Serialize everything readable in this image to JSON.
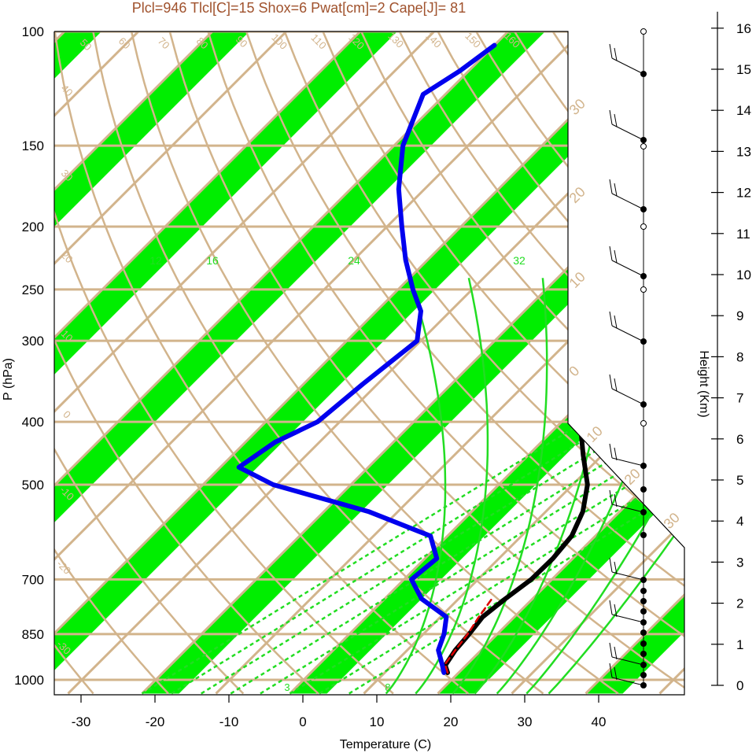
{
  "header": {
    "text": "Plcl=946 Tlcl[C]=15 Shox=6 Pwat[cm]=2 Cape[J]= 81"
  },
  "chart_data": {
    "type": "skew-t log-p sounding",
    "title": "Plcl=946 Tlcl[C]=15 Shox=6 Pwat[cm]=2 Cape[J]= 81",
    "xlabel": "Temperature (C)",
    "ylabel": "P (hPa)",
    "y2label": "Height (Km)",
    "xlim": [
      -33,
      52
    ],
    "ylim": [
      1050,
      100
    ],
    "x_ticks": [
      -30,
      -20,
      -10,
      0,
      10,
      20,
      30,
      40
    ],
    "x_tick_labels": [
      "-30",
      "-20",
      "-10",
      "0",
      "10",
      "20",
      "30",
      "40"
    ],
    "pressure_levels": [
      100,
      150,
      200,
      250,
      300,
      400,
      500,
      700,
      850,
      1000
    ],
    "pressure_labels": [
      "100",
      "150",
      "200",
      "250",
      "300",
      "400",
      "500",
      "700",
      "850",
      "1000"
    ],
    "height_ticks_km": [
      0,
      1,
      2,
      3,
      4,
      5,
      6,
      7,
      8,
      9,
      10,
      11,
      12,
      13,
      14,
      15,
      16
    ],
    "height_labels": [
      "0",
      "1",
      "2",
      "3",
      "4",
      "5",
      "6",
      "7",
      "8",
      "9",
      "10",
      "11",
      "12",
      "13",
      "14",
      "15",
      "16"
    ],
    "colors": {
      "isotherm_band": "#00ee00",
      "isotherm_line": "#d2b48c",
      "mixing_ratio": "#22dd22",
      "temperature": "#000000",
      "dewpoint": "#0000ee",
      "parcel": "#dd0000"
    },
    "dry_adiabat_labels": [
      "50",
      "60",
      "70",
      "80",
      "90",
      "100",
      "110",
      "120",
      "130",
      "140",
      "150",
      "160",
      "40",
      "30",
      "20",
      "10",
      "0",
      "-10",
      "-20",
      "-30"
    ],
    "isotherm_side_labels": [
      "30",
      "20",
      "10",
      "0",
      "10",
      "20",
      "30"
    ],
    "mixing_ratio_labels_top": [
      "12",
      "16",
      "24",
      "32"
    ],
    "mixing_ratio_labels_bottom": [
      "3",
      "8"
    ],
    "series": [
      {
        "name": "temperature",
        "points": [
          {
            "p": 975,
            "t": 18.5
          },
          {
            "p": 950,
            "t": 17.2
          },
          {
            "p": 900,
            "t": 16.5
          },
          {
            "p": 850,
            "t": 16.2
          },
          {
            "p": 800,
            "t": 15.7
          },
          {
            "p": 750,
            "t": 16.3
          },
          {
            "p": 700,
            "t": 17.2
          },
          {
            "p": 650,
            "t": 17.3
          },
          {
            "p": 600,
            "t": 16.8
          },
          {
            "p": 550,
            "t": 15.0
          },
          {
            "p": 500,
            "t": 12.0
          },
          {
            "p": 450,
            "t": 7.4
          },
          {
            "p": 400,
            "t": 2.5
          },
          {
            "p": 350,
            "t": -3.0
          },
          {
            "p": 300,
            "t": -9.2
          },
          {
            "p": 250,
            "t": -16.2
          },
          {
            "p": 200,
            "t": -23.8
          },
          {
            "p": 175,
            "t": -27.5
          },
          {
            "p": 150,
            "t": -29.3
          },
          {
            "p": 130,
            "t": -29.5
          },
          {
            "p": 115,
            "t": -30.8
          },
          {
            "p": 105,
            "t": -33.0
          }
        ]
      },
      {
        "name": "dewpoint",
        "points": [
          {
            "p": 975,
            "t": 18.0
          },
          {
            "p": 950,
            "t": 16.8
          },
          {
            "p": 900,
            "t": 14.2
          },
          {
            "p": 850,
            "t": 12.8
          },
          {
            "p": 800,
            "t": 10.8
          },
          {
            "p": 750,
            "t": 5.0
          },
          {
            "p": 700,
            "t": 1.0
          },
          {
            "p": 650,
            "t": 1.6
          },
          {
            "p": 600,
            "t": -2.3
          },
          {
            "p": 550,
            "t": -14.0
          },
          {
            "p": 500,
            "t": -30.5
          },
          {
            "p": 470,
            "t": -37.5
          },
          {
            "p": 430,
            "t": -36.0
          },
          {
            "p": 400,
            "t": -33.0
          },
          {
            "p": 350,
            "t": -32.0
          },
          {
            "p": 300,
            "t": -30.5
          },
          {
            "p": 270,
            "t": -34.0
          },
          {
            "p": 250,
            "t": -38.0
          },
          {
            "p": 225,
            "t": -43.0
          },
          {
            "p": 200,
            "t": -48.0
          },
          {
            "p": 175,
            "t": -53.5
          },
          {
            "p": 150,
            "t": -58.8
          },
          {
            "p": 125,
            "t": -63.0
          },
          {
            "p": 115,
            "t": -61.2
          },
          {
            "p": 105,
            "t": -60.0
          }
        ]
      },
      {
        "name": "parcel",
        "points": [
          {
            "p": 975,
            "t": 18.5
          },
          {
            "p": 946,
            "t": 17.0
          },
          {
            "p": 900,
            "t": 16.5
          },
          {
            "p": 850,
            "t": 16.0
          },
          {
            "p": 800,
            "t": 15.2
          },
          {
            "p": 750,
            "t": 14.5
          }
        ]
      }
    ]
  }
}
